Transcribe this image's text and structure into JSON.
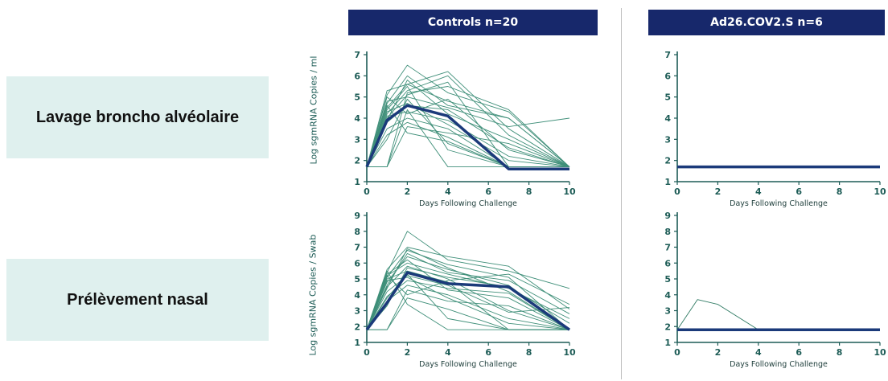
{
  "row_labels": [
    "Lavage broncho alvéolaire",
    "Prélèvement nasal"
  ],
  "column_headers": [
    "Controls n=20",
    "Ad26.COV2.S n=6"
  ],
  "y_axis_labels": [
    "Log sgmRNA Copies / ml",
    "Log sgmRNA Copies / Swab"
  ],
  "colors": {
    "individual": "#3f8f79",
    "individual_vaccine": "#2f7a63",
    "median": "#1b3a7a",
    "axis": "#1d5c56",
    "header_bg": "#17286b",
    "row_bg": "#dff0ee"
  },
  "chart_data": [
    {
      "type": "line",
      "panel": "top-left",
      "xlabel": "Days Following Challenge",
      "ylabel": "Log sgmRNA Copies / ml",
      "xlim": [
        0,
        10
      ],
      "ylim": [
        1,
        7
      ],
      "xticks": [
        0,
        2,
        4,
        6,
        8,
        10
      ],
      "yticks": [
        1,
        2,
        3,
        4,
        5,
        6,
        7
      ],
      "x": [
        0,
        1,
        2,
        4,
        7,
        10
      ],
      "series": [
        {
          "values": [
            1.7,
            5.1,
            6.5,
            5.2,
            4.3,
            1.7
          ]
        },
        {
          "values": [
            1.7,
            4.7,
            6.0,
            4.6,
            4.0,
            1.7
          ]
        },
        {
          "values": [
            1.7,
            4.5,
            5.6,
            6.2,
            3.5,
            1.7
          ]
        },
        {
          "values": [
            1.7,
            4.2,
            5.3,
            6.0,
            3.2,
            1.7
          ]
        },
        {
          "values": [
            1.7,
            4.0,
            5.1,
            5.7,
            1.7,
            1.7
          ]
        },
        {
          "values": [
            1.7,
            5.3,
            5.6,
            4.8,
            4.0,
            1.7
          ]
        },
        {
          "values": [
            1.7,
            4.8,
            5.0,
            4.5,
            3.6,
            4.0
          ]
        },
        {
          "values": [
            1.7,
            3.8,
            4.6,
            4.4,
            2.6,
            1.7
          ]
        },
        {
          "values": [
            1.7,
            4.1,
            4.3,
            3.9,
            2.2,
            1.7
          ]
        },
        {
          "values": [
            1.7,
            3.5,
            4.0,
            3.5,
            1.7,
            1.7
          ]
        },
        {
          "values": [
            1.7,
            3.2,
            3.8,
            3.1,
            1.7,
            1.7
          ]
        },
        {
          "values": [
            1.7,
            3.0,
            4.9,
            2.8,
            1.7,
            1.7
          ]
        },
        {
          "values": [
            1.7,
            4.4,
            5.5,
            2.5,
            1.7,
            1.7
          ]
        },
        {
          "values": [
            1.7,
            1.7,
            4.4,
            1.7,
            1.7,
            1.7
          ]
        },
        {
          "values": [
            1.7,
            1.7,
            3.6,
            3.3,
            2.8,
            1.7
          ]
        },
        {
          "values": [
            1.7,
            5.0,
            4.2,
            4.9,
            2.5,
            1.7
          ]
        },
        {
          "values": [
            1.7,
            3.9,
            5.8,
            4.2,
            3.0,
            1.7
          ]
        },
        {
          "values": [
            1.7,
            4.6,
            3.3,
            2.9,
            1.7,
            1.7
          ]
        },
        {
          "values": [
            1.7,
            1.7,
            5.2,
            5.5,
            4.4,
            1.7
          ]
        },
        {
          "values": [
            1.7,
            4.3,
            4.7,
            3.7,
            2.0,
            1.7
          ]
        }
      ],
      "median": [
        1.7,
        3.9,
        4.6,
        4.1,
        1.6,
        1.6
      ]
    },
    {
      "type": "line",
      "panel": "top-right",
      "xlabel": "Days Following Challenge",
      "xlim": [
        0,
        10
      ],
      "ylim": [
        1,
        7
      ],
      "xticks": [
        0,
        2,
        4,
        6,
        8,
        10
      ],
      "yticks": [
        1,
        2,
        3,
        4,
        5,
        6,
        7
      ],
      "x": [
        0,
        1,
        2,
        4,
        7,
        10
      ],
      "series": [],
      "median": [
        1.7,
        1.7,
        1.7,
        1.7,
        1.7,
        1.7
      ]
    },
    {
      "type": "line",
      "panel": "bottom-left",
      "xlabel": "Days Following Challenge",
      "ylabel": "Log sgmRNA Copies / Swab",
      "xlim": [
        0,
        10
      ],
      "ylim": [
        1,
        9
      ],
      "xticks": [
        0,
        2,
        4,
        6,
        8,
        10
      ],
      "yticks": [
        1,
        2,
        3,
        4,
        5,
        6,
        7,
        8,
        9
      ],
      "x": [
        0,
        1,
        2,
        4,
        7,
        10
      ],
      "series": [
        {
          "values": [
            1.8,
            5.4,
            8.0,
            6.2,
            5.5,
            4.4
          ]
        },
        {
          "values": [
            1.8,
            5.6,
            7.0,
            6.4,
            5.8,
            3.1
          ]
        },
        {
          "values": [
            1.8,
            5.1,
            6.8,
            5.9,
            5.1,
            1.8
          ]
        },
        {
          "values": [
            1.8,
            4.8,
            6.4,
            5.6,
            4.6,
            1.8
          ]
        },
        {
          "values": [
            1.8,
            5.2,
            6.0,
            5.3,
            4.4,
            2.5
          ]
        },
        {
          "values": [
            1.8,
            4.5,
            5.8,
            5.0,
            3.0,
            1.8
          ]
        },
        {
          "values": [
            1.8,
            5.0,
            5.5,
            4.8,
            1.8,
            1.8
          ]
        },
        {
          "values": [
            1.8,
            4.2,
            5.2,
            4.6,
            2.9,
            3.2
          ]
        },
        {
          "values": [
            1.8,
            3.9,
            4.9,
            4.4,
            4.1,
            1.8
          ]
        },
        {
          "values": [
            1.8,
            3.6,
            4.6,
            4.0,
            2.5,
            1.8
          ]
        },
        {
          "values": [
            1.8,
            1.8,
            4.3,
            3.6,
            3.3,
            1.8
          ]
        },
        {
          "values": [
            1.8,
            1.8,
            3.8,
            3.1,
            1.8,
            1.8
          ]
        },
        {
          "values": [
            1.8,
            5.5,
            3.4,
            1.8,
            1.8,
            1.8
          ]
        },
        {
          "values": [
            1.8,
            4.6,
            6.6,
            5.4,
            4.9,
            2.8
          ]
        },
        {
          "values": [
            1.8,
            5.3,
            6.2,
            4.3,
            3.8,
            1.8
          ]
        },
        {
          "values": [
            1.8,
            3.3,
            5.7,
            5.1,
            4.5,
            2.2
          ]
        },
        {
          "values": [
            1.8,
            4.9,
            5.1,
            3.8,
            2.2,
            1.8
          ]
        },
        {
          "values": [
            1.8,
            5.2,
            4.0,
            4.9,
            5.3,
            3.4
          ]
        },
        {
          "values": [
            1.8,
            4.4,
            6.9,
            5.7,
            4.2,
            1.8
          ]
        },
        {
          "values": [
            1.8,
            3.8,
            5.3,
            2.5,
            1.8,
            1.8
          ]
        }
      ],
      "median": [
        1.8,
        3.5,
        5.4,
        4.7,
        4.5,
        1.8
      ]
    },
    {
      "type": "line",
      "panel": "bottom-right",
      "xlabel": "Days Following Challenge",
      "xlim": [
        0,
        10
      ],
      "ylim": [
        1,
        9
      ],
      "xticks": [
        0,
        2,
        4,
        6,
        8,
        10
      ],
      "yticks": [
        1,
        2,
        3,
        4,
        5,
        6,
        7,
        8,
        9
      ],
      "x": [
        0,
        1,
        2,
        4,
        7,
        10
      ],
      "series": [
        {
          "values": [
            1.8,
            3.7,
            3.4,
            1.8,
            1.8,
            1.8
          ]
        }
      ],
      "median": [
        1.8,
        1.8,
        1.8,
        1.8,
        1.8,
        1.8
      ]
    }
  ]
}
